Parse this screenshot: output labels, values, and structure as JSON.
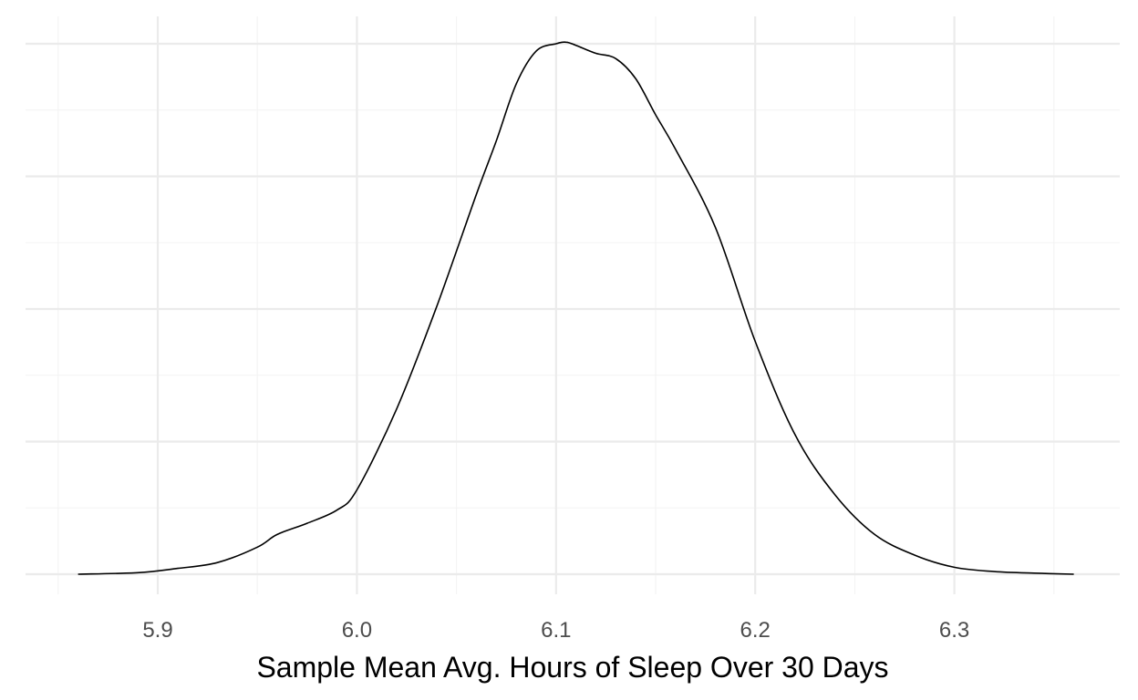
{
  "chart_data": {
    "type": "line",
    "title": "",
    "xlabel": "Sample Mean Avg. Hours of Sleep Over 30 Days",
    "ylabel": "",
    "xlim": [
      5.85,
      6.375
    ],
    "ylim": [
      0,
      1
    ],
    "x_ticks": [
      "5.9",
      "6.0",
      "6.1",
      "6.2",
      "6.3"
    ],
    "y_ticks_shown": false,
    "grid": true,
    "series": [
      {
        "x": [
          5.86,
          5.89,
          5.91,
          5.93,
          5.95,
          5.96,
          5.975,
          5.99,
          6.0,
          6.02,
          6.04,
          6.06,
          6.07,
          6.08,
          6.09,
          6.1,
          6.105,
          6.11,
          6.12,
          6.13,
          6.14,
          6.15,
          6.16,
          6.18,
          6.2,
          6.22,
          6.24,
          6.26,
          6.28,
          6.3,
          6.32,
          6.34,
          6.36
        ],
        "y": [
          0.0,
          0.003,
          0.011,
          0.022,
          0.051,
          0.075,
          0.096,
          0.121,
          0.159,
          0.312,
          0.504,
          0.716,
          0.817,
          0.924,
          0.986,
          1.0,
          1.003,
          0.997,
          0.982,
          0.972,
          0.934,
          0.866,
          0.801,
          0.654,
          0.439,
          0.263,
          0.15,
          0.075,
          0.036,
          0.013,
          0.005,
          0.002,
          0.0
        ]
      }
    ]
  }
}
